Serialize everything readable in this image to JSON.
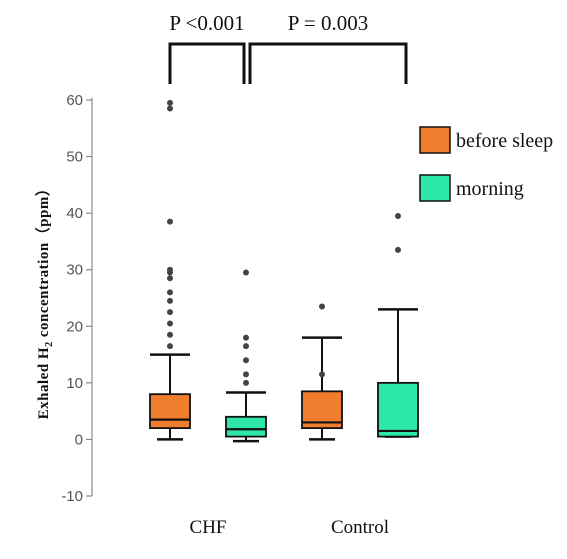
{
  "chart_data": {
    "type": "box",
    "title": "",
    "ylabel_main": "Exhaled H",
    "ylabel_sub": "2",
    "ylabel_rest": " concentration（ppm）",
    "xlabel": "",
    "ylim": [
      -10,
      62
    ],
    "yticks": [
      -10,
      0,
      10,
      20,
      30,
      40,
      50,
      60
    ],
    "categories": [
      "CHF",
      "Control"
    ],
    "series": [
      {
        "name": "before sleep",
        "color": "#f07d2e",
        "boxes": [
          {
            "category": "CHF",
            "min": 0,
            "q1": 2,
            "median": 3.5,
            "q3": 8,
            "max": 15,
            "outliers": [
              16.5,
              18.5,
              20.5,
              22.5,
              24.5,
              26,
              28.5,
              29.5,
              30,
              38.5,
              58.5,
              59.5
            ]
          },
          {
            "category": "Control",
            "min": 0,
            "q1": 2,
            "median": 3,
            "q3": 8.5,
            "max": 18,
            "outliers": [
              11.5,
              23.5
            ]
          }
        ]
      },
      {
        "name": "morning",
        "color": "#2ee8a8",
        "boxes": [
          {
            "category": "CHF",
            "min": -0.3,
            "q1": 0.5,
            "median": 1.8,
            "q3": 4,
            "max": 8.3,
            "outliers": [
              10,
              11.5,
              14,
              16.5,
              18,
              29.5
            ]
          },
          {
            "category": "Control",
            "min": 0.5,
            "q1": 0.5,
            "median": 1.5,
            "q3": 10,
            "max": 23,
            "outliers": [
              33.5,
              39.5
            ]
          }
        ]
      }
    ],
    "significance": [
      {
        "label": "P <0.001"
      },
      {
        "label": "P = 0.003"
      }
    ],
    "legend_position": "top-right",
    "grid": false
  }
}
